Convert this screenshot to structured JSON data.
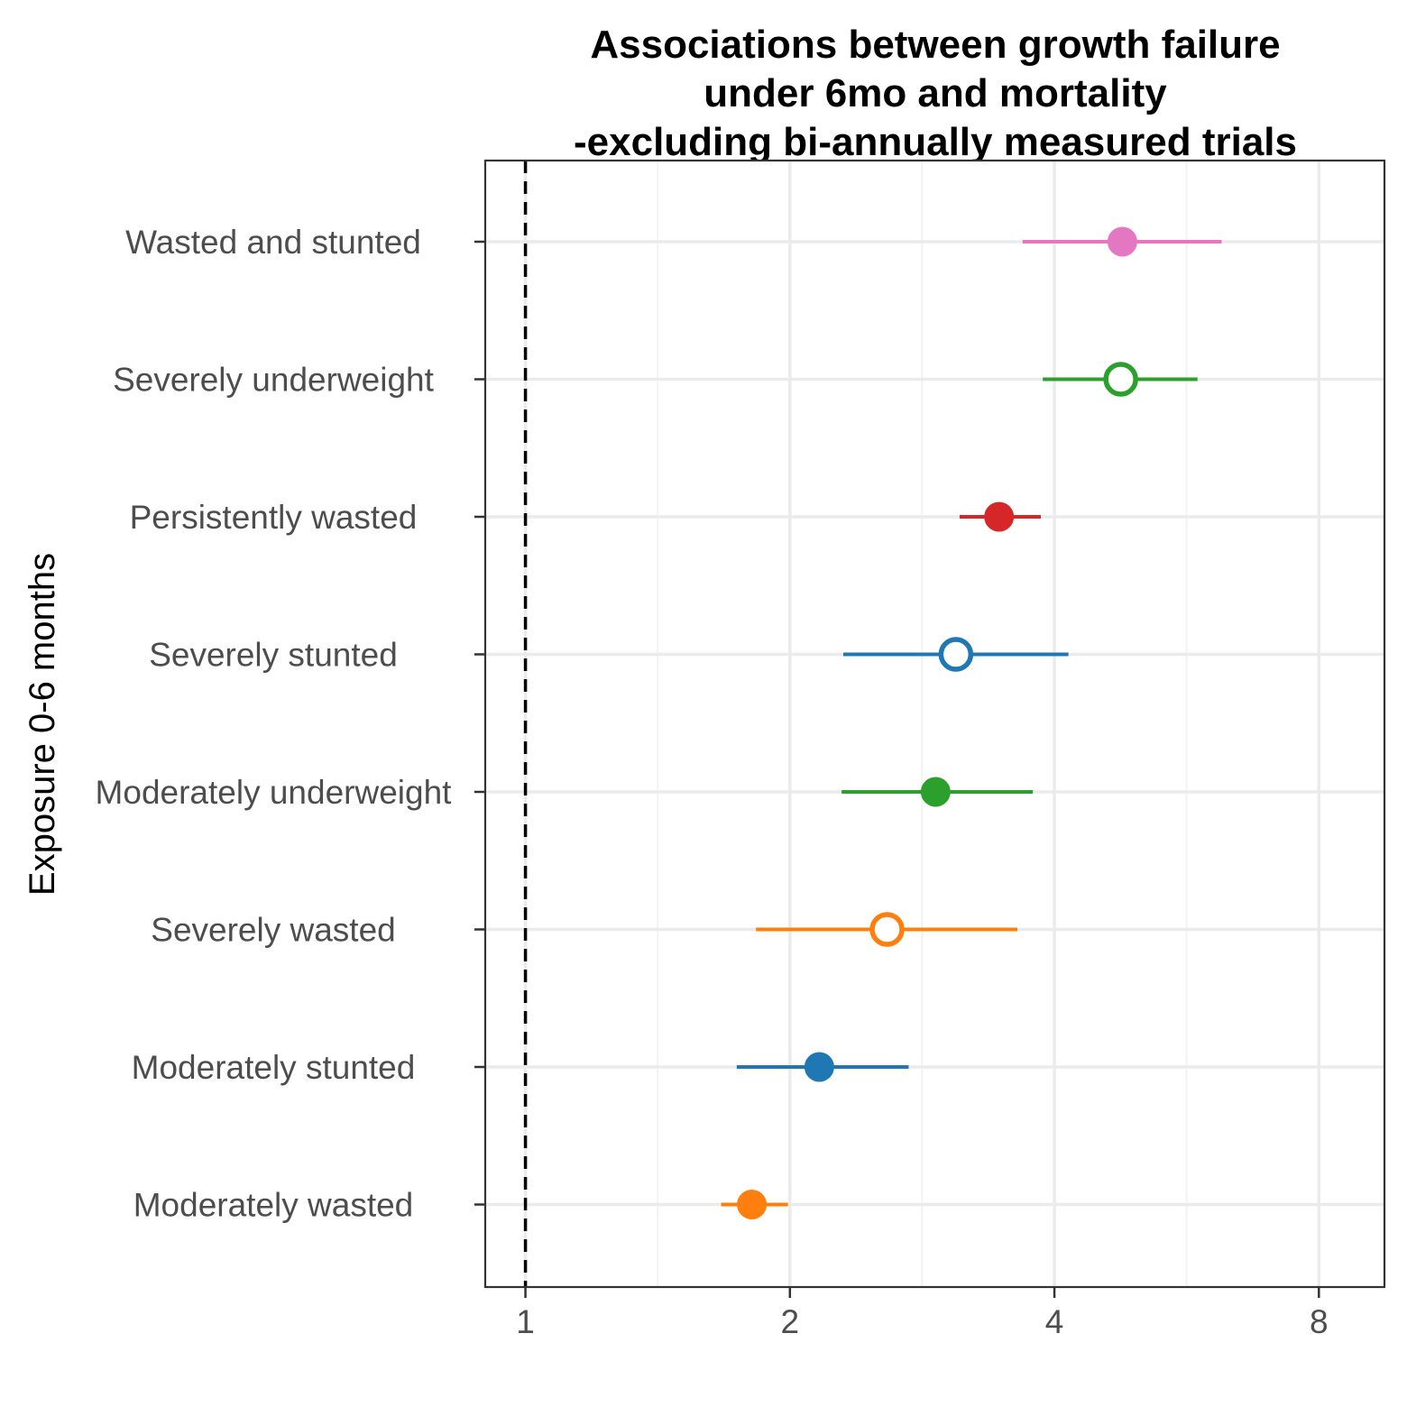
{
  "chart_data": {
    "type": "scatter",
    "subtype": "forest-plot",
    "title": [
      "Associations between growth failure",
      "under 6mo and mortality",
      "-excluding bi-annually measured trials"
    ],
    "xlabel": "",
    "ylabel": "Exposure 0-6 months",
    "x_scale": "log2",
    "xlim": [
      0.9,
      9.5
    ],
    "x_ticks": [
      1,
      2,
      4,
      8
    ],
    "x_tick_labels": [
      "1",
      "2",
      "4",
      "8"
    ],
    "reference_line": {
      "x": 1,
      "style": "dashed"
    },
    "grid": true,
    "legend": "none",
    "categories": [
      "Wasted and stunted",
      "Severely underweight",
      "Persistently wasted",
      "Severely stunted",
      "Moderately underweight",
      "Severely wasted",
      "Moderately stunted",
      "Moderately wasted"
    ],
    "points": [
      {
        "label": "Wasted and stunted",
        "estimate": 4.78,
        "ci_lower": 3.68,
        "ci_upper": 6.2,
        "filled": true,
        "color": "#E377C2"
      },
      {
        "label": "Severely underweight",
        "estimate": 4.76,
        "ci_lower": 3.88,
        "ci_upper": 5.82,
        "filled": false,
        "color": "#2CA02C"
      },
      {
        "label": "Persistently wasted",
        "estimate": 3.46,
        "ci_lower": 3.12,
        "ci_upper": 3.86,
        "filled": true,
        "color": "#D62728"
      },
      {
        "label": "Severely stunted",
        "estimate": 3.09,
        "ci_lower": 2.3,
        "ci_upper": 4.15,
        "filled": false,
        "color": "#1F77B4"
      },
      {
        "label": "Moderately underweight",
        "estimate": 2.93,
        "ci_lower": 2.29,
        "ci_upper": 3.78,
        "filled": true,
        "color": "#2CA02C"
      },
      {
        "label": "Severely wasted",
        "estimate": 2.58,
        "ci_lower": 1.83,
        "ci_upper": 3.63,
        "filled": false,
        "color": "#FF7F0E"
      },
      {
        "label": "Moderately stunted",
        "estimate": 2.16,
        "ci_lower": 1.74,
        "ci_upper": 2.73,
        "filled": true,
        "color": "#1F77B4"
      },
      {
        "label": "Moderately wasted",
        "estimate": 1.81,
        "ci_lower": 1.67,
        "ci_upper": 1.99,
        "filled": true,
        "color": "#FF7F0E"
      }
    ]
  }
}
